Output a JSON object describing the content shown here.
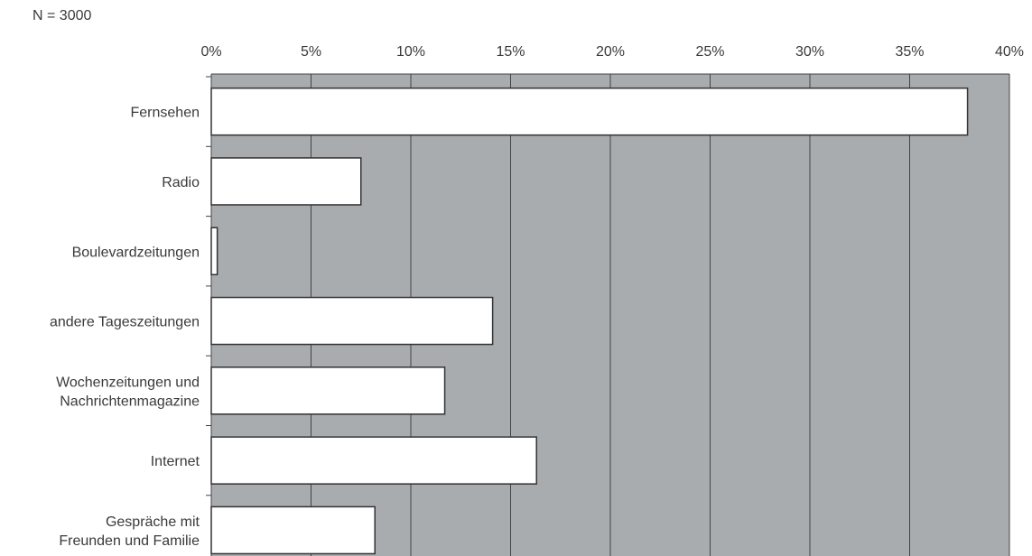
{
  "note": "N = 3000",
  "colors": {
    "plot_background": "#a8acaf",
    "bar_fill": "#ffffff",
    "bar_stroke": "#333333",
    "grid": "#444444",
    "text": "#3a3a3a"
  },
  "chart_data": {
    "type": "bar",
    "orientation": "horizontal",
    "title": "",
    "xlabel": "",
    "ylabel": "",
    "xlim": [
      0,
      40
    ],
    "x_tick_values": [
      0,
      5,
      10,
      15,
      20,
      25,
      30,
      35,
      40
    ],
    "x_tick_labels": [
      "0%",
      "5%",
      "10%",
      "15%",
      "20%",
      "25%",
      "30%",
      "35%",
      "40%"
    ],
    "x_axis_position": "top",
    "grid": true,
    "legend": "none",
    "categories": [
      [
        "Fernsehen"
      ],
      [
        "Radio"
      ],
      [
        "Boulevardzeitungen"
      ],
      [
        "andere Tageszeitungen"
      ],
      [
        "Wochenzeitungen und",
        "Nachrichtenmagazine"
      ],
      [
        "Internet"
      ],
      [
        "Gespräche mit",
        "Freunden und Familie"
      ]
    ],
    "values": [
      37.9,
      7.5,
      0.3,
      14.1,
      11.7,
      16.3,
      8.2
    ],
    "unit": "%"
  }
}
